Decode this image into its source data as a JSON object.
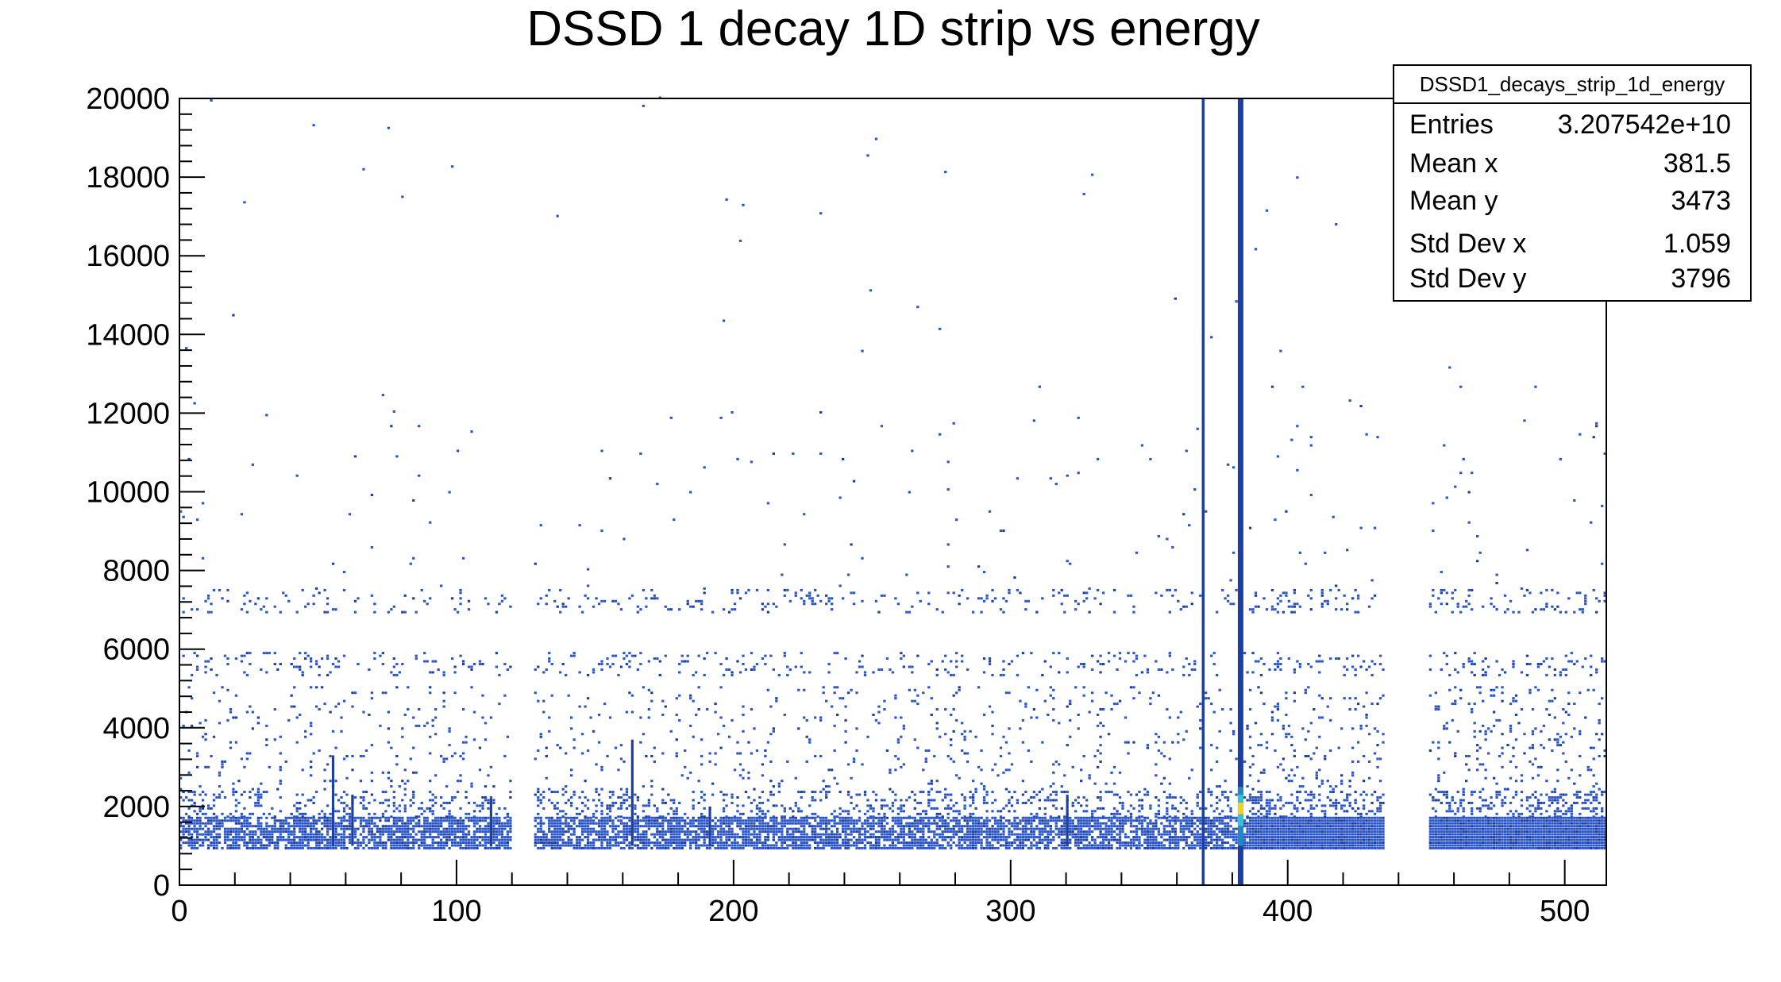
{
  "chart_data": {
    "type": "heatmap",
    "title": "DSSD 1 decay 1D strip vs energy",
    "xlabel": "",
    "ylabel": "",
    "xlim": [
      0,
      515
    ],
    "ylim": [
      0,
      20000
    ],
    "x_ticks": [
      0,
      100,
      200,
      300,
      400,
      500
    ],
    "y_ticks": [
      0,
      2000,
      4000,
      6000,
      8000,
      10000,
      12000,
      14000,
      16000,
      18000,
      20000
    ],
    "x_tick_labels": [
      "0",
      "100",
      "200",
      "300",
      "400",
      "500"
    ],
    "y_tick_labels": [
      "0",
      "2000",
      "4000",
      "6000",
      "8000",
      "10000",
      "12000",
      "14000",
      "16000",
      "18000",
      "20000"
    ],
    "grid": false,
    "palette": [
      "#1f3f9e",
      "#2a55c8",
      "#1e88c8",
      "#33c3d6",
      "#f2d21e"
    ],
    "stats_box": {
      "title": "DSSD1_decays_strip_1d_energy",
      "position": "top-right",
      "rows": [
        {
          "label": "Entries",
          "value": "3.207542e+10"
        },
        {
          "label": "Mean x",
          "value": "381.5"
        },
        {
          "label": "Mean y",
          "value": "3473"
        },
        {
          "label": "Std Dev x",
          "value": "1.059"
        },
        {
          "label": "Std Dev y",
          "value": "3796"
        }
      ]
    },
    "full_strips": [
      {
        "strip": 369,
        "ymax": 20000,
        "width": 1
      },
      {
        "strip": 382,
        "ymax": 20000,
        "width": 2
      }
    ],
    "hotspot": {
      "strip": 382,
      "bands": [
        {
          "y0": 1000,
          "y1": 1500,
          "level": 2
        },
        {
          "y0": 1500,
          "y1": 1800,
          "level": 3
        },
        {
          "y0": 1800,
          "y1": 2100,
          "level": 4
        },
        {
          "y0": 2100,
          "y1": 2300,
          "level": 3
        },
        {
          "y0": 2300,
          "y1": 2500,
          "level": 2
        }
      ]
    },
    "empty_strip_ranges": [
      [
        120,
        128
      ],
      [
        435,
        451
      ]
    ],
    "density_bands": [
      {
        "y0": 900,
        "y1": 1700,
        "density": 0.75
      },
      {
        "y0": 1700,
        "y1": 2400,
        "density": 0.2
      },
      {
        "y0": 2400,
        "y1": 5000,
        "density": 0.05
      },
      {
        "y0": 5300,
        "y1": 5900,
        "density": 0.09
      },
      {
        "y0": 6900,
        "y1": 7500,
        "density": 0.08
      },
      {
        "y0": 7500,
        "y1": 12000,
        "density": 0.004
      },
      {
        "y0": 12000,
        "y1": 20000,
        "density": 0.001
      }
    ],
    "hot_strips": [
      {
        "strip": 55,
        "ymax": 3300
      },
      {
        "strip": 62,
        "ymax": 2300
      },
      {
        "strip": 191,
        "ymax": 2000
      },
      {
        "strip": 163,
        "ymax": 3700
      },
      {
        "strip": 320,
        "ymax": 2300
      },
      {
        "strip": 112,
        "ymax": 2200
      }
    ]
  }
}
